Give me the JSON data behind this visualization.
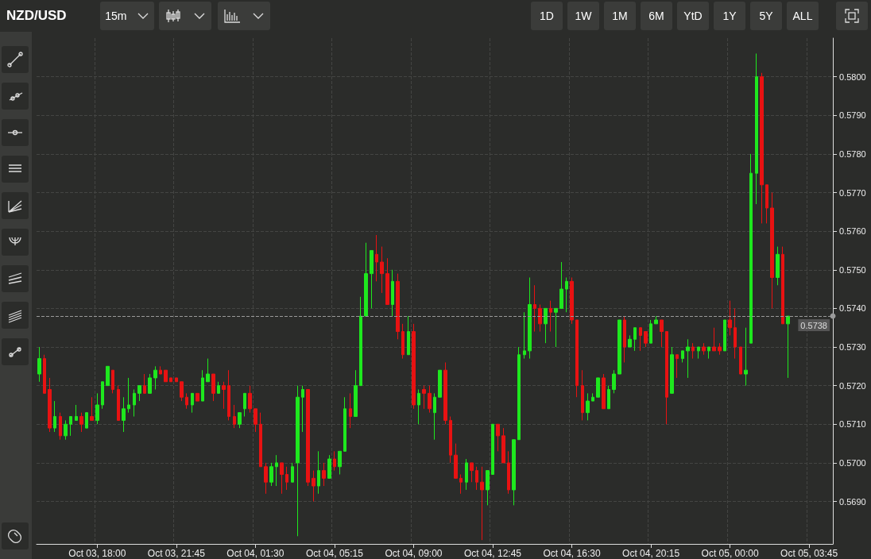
{
  "chart_data": {
    "type": "candlestick",
    "title": "NZD/USD",
    "annotations": [
      "15m",
      "1D",
      "1W",
      "1M",
      "6M",
      "YtD",
      "1Y",
      "5Y",
      "ALL"
    ],
    "categories": [
      null,
      null,
      null,
      null,
      null,
      null,
      null,
      null,
      null,
      null,
      null,
      "Oct 03, 18:00",
      null,
      null,
      null,
      null,
      null,
      null,
      null,
      null,
      null,
      null,
      null,
      null,
      null,
      null,
      "Oct 03, 21:45",
      null,
      null,
      null,
      null,
      null,
      null,
      null,
      null,
      null,
      null,
      null,
      null,
      null,
      null,
      "Oct 04, 01:30",
      null,
      null,
      null,
      null,
      null,
      null,
      null,
      null,
      null,
      null,
      null,
      null,
      null,
      null,
      "Oct 04, 05:15",
      null,
      null,
      null,
      null,
      null,
      null,
      null,
      null,
      null,
      null,
      null,
      null,
      null,
      null,
      "Oct 04, 09:00",
      null,
      null,
      null,
      null,
      null,
      null,
      null,
      null,
      null,
      null,
      null,
      null,
      null,
      null,
      "Oct 04, 12:45",
      null,
      null,
      null,
      null,
      null,
      null,
      null,
      null,
      null,
      null,
      null,
      null,
      null,
      null,
      "Oct 04, 16:30",
      null,
      null,
      null,
      null,
      null,
      null,
      null,
      null,
      null,
      null,
      null,
      null,
      null,
      null,
      "Oct 04, 20:15",
      null,
      null,
      null,
      null,
      null,
      null,
      null,
      null,
      null,
      null,
      null,
      null,
      null,
      null,
      "Oct 05, 00:00",
      null,
      null,
      null,
      null,
      null,
      null,
      null,
      null,
      null,
      null,
      null,
      null,
      null,
      null,
      "Oct 05, 03:45",
      null,
      null,
      null,
      null
    ],
    "ohlc": [
      [
        0.5723,
        0.573,
        0.5721,
        0.5727
      ],
      [
        0.5727,
        0.5728,
        0.5718,
        0.5718
      ],
      [
        0.5719,
        0.5722,
        0.5708,
        0.5709
      ],
      [
        0.5709,
        0.5716,
        0.5708,
        0.5712
      ],
      [
        0.5712,
        0.5713,
        0.5706,
        0.5707
      ],
      [
        0.5707,
        0.5711,
        0.5706,
        0.571
      ],
      [
        0.571,
        0.5712,
        0.5707,
        0.5712
      ],
      [
        0.5711,
        0.5715,
        0.5711,
        0.5712
      ],
      [
        0.5712,
        0.5713,
        0.5708,
        0.571
      ],
      [
        0.5709,
        0.5713,
        0.5709,
        0.5713
      ],
      [
        0.5712,
        0.5717,
        0.5711,
        0.5711
      ],
      [
        0.5711,
        0.5718,
        0.571,
        0.5715
      ],
      [
        0.5715,
        0.5721,
        0.5714,
        0.5721
      ],
      [
        0.572,
        0.5725,
        0.572,
        0.5725
      ],
      [
        0.5724,
        0.5724,
        0.5718,
        0.5719
      ],
      [
        0.5719,
        0.572,
        0.5711,
        0.5711
      ],
      [
        0.5711,
        0.5717,
        0.5708,
        0.5714
      ],
      [
        0.5714,
        0.5722,
        0.5713,
        0.5715
      ],
      [
        0.5715,
        0.5719,
        0.5712,
        0.5718
      ],
      [
        0.5718,
        0.572,
        0.5716,
        0.572
      ],
      [
        0.572,
        0.5723,
        0.5718,
        0.5718
      ],
      [
        0.5718,
        0.5723,
        0.5718,
        0.5722
      ],
      [
        0.5722,
        0.5725,
        0.5719,
        0.5724
      ],
      [
        0.5724,
        0.5725,
        0.5723,
        0.5723
      ],
      [
        0.5724,
        0.5724,
        0.5721,
        0.5721
      ],
      [
        0.5722,
        0.5722,
        0.5721,
        0.5721
      ],
      [
        0.5722,
        0.5722,
        0.5721,
        0.5721
      ],
      [
        0.5721,
        0.5721,
        0.5716,
        0.5717
      ],
      [
        0.5717,
        0.5718,
        0.5714,
        0.5715
      ],
      [
        0.5715,
        0.5718,
        0.5713,
        0.5718
      ],
      [
        0.5718,
        0.5718,
        0.5716,
        0.5716
      ],
      [
        0.5716,
        0.5724,
        0.5716,
        0.5722
      ],
      [
        0.5721,
        0.5727,
        0.5721,
        0.5723
      ],
      [
        0.5723,
        0.5723,
        0.5716,
        0.5718
      ],
      [
        0.5718,
        0.5721,
        0.5718,
        0.572
      ],
      [
        0.572,
        0.5721,
        0.5714,
        0.5719
      ],
      [
        0.572,
        0.5724,
        0.5711,
        0.5712
      ],
      [
        0.5712,
        0.5715,
        0.5709,
        0.571
      ],
      [
        0.571,
        0.5713,
        0.5709,
        0.5713
      ],
      [
        0.5714,
        0.5718,
        0.5712,
        0.5718
      ],
      [
        0.5718,
        0.572,
        0.5713,
        0.5714
      ],
      [
        0.5714,
        0.5714,
        0.5708,
        0.571
      ],
      [
        0.571,
        0.5713,
        0.5699,
        0.5699
      ],
      [
        0.5699,
        0.57,
        0.5692,
        0.5695
      ],
      [
        0.5695,
        0.57,
        0.5694,
        0.5699
      ],
      [
        0.5699,
        0.5702,
        0.5694,
        0.57
      ],
      [
        0.57,
        0.57,
        0.5692,
        0.5697
      ],
      [
        0.5697,
        0.5699,
        0.5693,
        0.5695
      ],
      [
        0.5695,
        0.57,
        0.5695,
        0.5699
      ],
      [
        0.57,
        0.572,
        0.5681,
        0.5717
      ],
      [
        0.5717,
        0.572,
        0.5708,
        0.5719
      ],
      [
        0.5719,
        0.5719,
        0.5694,
        0.5695
      ],
      [
        0.5696,
        0.5698,
        0.569,
        0.5694
      ],
      [
        0.5694,
        0.5703,
        0.5692,
        0.5698
      ],
      [
        0.5698,
        0.57,
        0.5694,
        0.5696
      ],
      [
        0.5696,
        0.5702,
        0.5696,
        0.5701
      ],
      [
        0.5701,
        0.5703,
        0.5698,
        0.5699
      ],
      [
        0.5699,
        0.5703,
        0.5697,
        0.5703
      ],
      [
        0.5703,
        0.5717,
        0.5703,
        0.5714
      ],
      [
        0.5714,
        0.5718,
        0.5709,
        0.5712
      ],
      [
        0.5712,
        0.5724,
        0.5712,
        0.572
      ],
      [
        0.572,
        0.5743,
        0.572,
        0.5738
      ],
      [
        0.5738,
        0.5757,
        0.5738,
        0.5749
      ],
      [
        0.5749,
        0.5755,
        0.574,
        0.5755
      ],
      [
        0.5754,
        0.5759,
        0.5747,
        0.5752
      ],
      [
        0.5752,
        0.5756,
        0.5744,
        0.5749
      ],
      [
        0.5749,
        0.5753,
        0.5741,
        0.5741
      ],
      [
        0.5741,
        0.575,
        0.5738,
        0.5747
      ],
      [
        0.5747,
        0.5749,
        0.5732,
        0.5734
      ],
      [
        0.5734,
        0.5736,
        0.5727,
        0.5728
      ],
      [
        0.5728,
        0.5738,
        0.5728,
        0.5734
      ],
      [
        0.5734,
        0.5736,
        0.5714,
        0.5715
      ],
      [
        0.5715,
        0.5719,
        0.571,
        0.5718
      ],
      [
        0.5719,
        0.572,
        0.5714,
        0.5718
      ],
      [
        0.5718,
        0.572,
        0.5713,
        0.5714
      ],
      [
        0.5713,
        0.5718,
        0.5706,
        0.5717
      ],
      [
        0.5717,
        0.5724,
        0.5717,
        0.5724
      ],
      [
        0.5724,
        0.5726,
        0.571,
        0.5711
      ],
      [
        0.5711,
        0.5712,
        0.57,
        0.5702
      ],
      [
        0.5702,
        0.5705,
        0.5696,
        0.5696
      ],
      [
        0.5696,
        0.5697,
        0.5692,
        0.5695
      ],
      [
        0.5695,
        0.5701,
        0.5693,
        0.57
      ],
      [
        0.57,
        0.57,
        0.5695,
        0.5698
      ],
      [
        0.5698,
        0.5699,
        0.5693,
        0.5695
      ],
      [
        0.5695,
        0.5699,
        0.568,
        0.5693
      ],
      [
        0.5693,
        0.5698,
        0.5689,
        0.5698
      ],
      [
        0.5697,
        0.571,
        0.5697,
        0.571
      ],
      [
        0.571,
        0.571,
        0.5703,
        0.5707
      ],
      [
        0.5707,
        0.5709,
        0.57,
        0.57
      ],
      [
        0.57,
        0.5703,
        0.5692,
        0.5693
      ],
      [
        0.5693,
        0.5706,
        0.5689,
        0.5706
      ],
      [
        0.5706,
        0.573,
        0.5706,
        0.5728
      ],
      [
        0.5728,
        0.5739,
        0.5727,
        0.5729
      ],
      [
        0.5729,
        0.5748,
        0.5727,
        0.5741
      ],
      [
        0.5741,
        0.5746,
        0.5734,
        0.574
      ],
      [
        0.574,
        0.5741,
        0.5734,
        0.5736
      ],
      [
        0.5736,
        0.574,
        0.5731,
        0.574
      ],
      [
        0.574,
        0.5742,
        0.5734,
        0.5739
      ],
      [
        0.5739,
        0.574,
        0.573,
        0.574
      ],
      [
        0.574,
        0.5752,
        0.574,
        0.5745
      ],
      [
        0.5745,
        0.5748,
        0.5739,
        0.5747
      ],
      [
        0.5747,
        0.5748,
        0.5736,
        0.5737
      ],
      [
        0.5737,
        0.5737,
        0.5717,
        0.572
      ],
      [
        0.572,
        0.5724,
        0.5711,
        0.5713
      ],
      [
        0.5713,
        0.5718,
        0.5711,
        0.5716
      ],
      [
        0.5716,
        0.5718,
        0.5716,
        0.5717
      ],
      [
        0.5717,
        0.5722,
        0.5717,
        0.5722
      ],
      [
        0.5722,
        0.5723,
        0.5714,
        0.5714
      ],
      [
        0.5714,
        0.572,
        0.5714,
        0.5719
      ],
      [
        0.5719,
        0.5724,
        0.5718,
        0.5723
      ],
      [
        0.5723,
        0.5737,
        0.5723,
        0.5737
      ],
      [
        0.5737,
        0.5738,
        0.5726,
        0.573
      ],
      [
        0.573,
        0.5733,
        0.573,
        0.5732
      ],
      [
        0.5732,
        0.5735,
        0.5729,
        0.5735
      ],
      [
        0.5735,
        0.5735,
        0.5729,
        0.5733
      ],
      [
        0.5734,
        0.5734,
        0.573,
        0.5731
      ],
      [
        0.5731,
        0.5737,
        0.5731,
        0.5736
      ],
      [
        0.5736,
        0.5738,
        0.5736,
        0.5737
      ],
      [
        0.5737,
        0.5737,
        0.573,
        0.5734
      ],
      [
        0.5734,
        0.5734,
        0.571,
        0.5717
      ],
      [
        0.5718,
        0.573,
        0.5718,
        0.5728
      ],
      [
        0.5728,
        0.5728,
        0.5722,
        0.5727
      ],
      [
        0.5727,
        0.5729,
        0.5726,
        0.5729
      ],
      [
        0.5729,
        0.5732,
        0.5722,
        0.573
      ],
      [
        0.573,
        0.5731,
        0.5727,
        0.5729
      ],
      [
        0.5729,
        0.573,
        0.5727,
        0.573
      ],
      [
        0.573,
        0.5731,
        0.5728,
        0.5729
      ],
      [
        0.5729,
        0.573,
        0.5727,
        0.573
      ],
      [
        0.573,
        0.5735,
        0.5729,
        0.5729
      ],
      [
        0.573,
        0.5731,
        0.5728,
        0.5729
      ],
      [
        0.5729,
        0.5737,
        0.5729,
        0.5737
      ],
      [
        0.5737,
        0.5742,
        0.5733,
        0.5735
      ],
      [
        0.5735,
        0.574,
        0.5727,
        0.573
      ],
      [
        0.573,
        0.573,
        0.5723,
        0.5723
      ],
      [
        0.5723,
        0.5735,
        0.572,
        0.5724
      ],
      [
        0.5731,
        0.578,
        0.5731,
        0.5775
      ],
      [
        0.5775,
        0.5806,
        0.5767,
        0.58
      ],
      [
        0.58,
        0.5801,
        0.5762,
        0.5772
      ],
      [
        0.5772,
        0.5772,
        0.5762,
        0.5766
      ],
      [
        0.5766,
        0.577,
        0.574,
        0.5748
      ],
      [
        0.5748,
        0.5756,
        0.5746,
        0.5754
      ],
      [
        0.5754,
        0.5756,
        0.5736,
        0.5736
      ],
      [
        0.5736,
        0.5738,
        0.5722,
        0.5738
      ],
      null,
      null,
      null,
      null,
      null,
      null,
      null,
      null
    ],
    "ylim": [
      0.5679,
      0.581
    ],
    "yticks": [
      {
        "value": 0.569,
        "label": "0.5690"
      },
      {
        "value": 0.57,
        "label": "0.5700"
      },
      {
        "value": 0.571,
        "label": "0.5710"
      },
      {
        "value": 0.572,
        "label": "0.5720"
      },
      {
        "value": 0.573,
        "label": "0.5730"
      },
      {
        "value": 0.574,
        "label": "0.5740"
      },
      {
        "value": 0.575,
        "label": "0.5750"
      },
      {
        "value": 0.576,
        "label": "0.5760"
      },
      {
        "value": 0.577,
        "label": "0.5770"
      },
      {
        "value": 0.578,
        "label": "0.5780"
      },
      {
        "value": 0.579,
        "label": "0.5790"
      },
      {
        "value": 0.58,
        "label": "0.5800"
      }
    ],
    "ref_lines": [
      {
        "axis": "y",
        "value": 0.5738,
        "label": "0.5738",
        "color": "#9a9a9a",
        "line_style": "dashed"
      }
    ],
    "grid": true
  }
}
